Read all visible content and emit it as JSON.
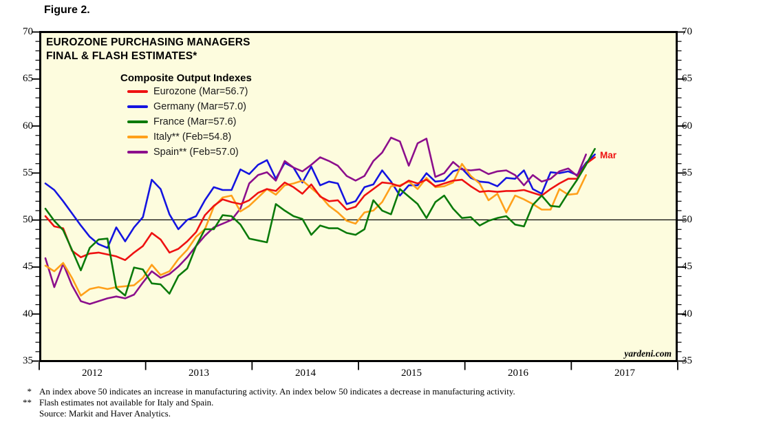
{
  "figure_label": "Figure 2.",
  "chart": {
    "title_line1": "EUROZONE PURCHASING MANAGERS",
    "title_line2": "FINAL & FLASH ESTIMATES*",
    "legend_title": "Composite Output Indexes",
    "end_annotation": "Mar",
    "end_annotation_color": "#ee1111",
    "watermark": "yardeni.com",
    "plot_background": "#fdfcde"
  },
  "axis": {
    "y_tick_labels": [
      "70",
      "65",
      "60",
      "55",
      "50",
      "45",
      "40",
      "35"
    ],
    "x_tick_labels": [
      "2012",
      "2013",
      "2014",
      "2015",
      "2016",
      "2017"
    ],
    "reference_line": 50
  },
  "chart_data": {
    "type": "line",
    "title": "EUROZONE PURCHASING MANAGERS FINAL & FLASH ESTIMATES*",
    "subtitle": "Composite Output Indexes",
    "x_start": "2012-01",
    "x_end": "2017-03",
    "frequency": "monthly",
    "ylim": [
      35,
      70
    ],
    "y_major_tick": 5,
    "y_minor_tick": 1,
    "reference_line": 50,
    "grid": false,
    "legend_position": "upper-left-inside",
    "series": [
      {
        "id": "germany",
        "name": "Germany",
        "legend_label": "Germany (Mar=57.0)",
        "color": "#1414e0",
        "values": [
          53.9,
          53.2,
          52.0,
          50.7,
          49.4,
          48.2,
          47.4,
          47.0,
          49.2,
          47.7,
          49.2,
          50.3,
          54.3,
          53.3,
          50.6,
          49.0,
          50.0,
          50.4,
          52.1,
          53.5,
          53.2,
          53.2,
          55.4,
          54.9,
          55.9,
          56.4,
          54.4,
          56.1,
          55.6,
          54.0,
          55.7,
          53.7,
          54.1,
          53.9,
          51.7,
          52.0,
          53.5,
          53.8,
          55.3,
          54.1,
          52.6,
          53.7,
          53.7,
          55.0,
          54.1,
          54.2,
          55.2,
          55.5,
          54.5,
          54.1,
          54.0,
          53.6,
          54.5,
          54.4,
          55.3,
          53.3,
          52.8,
          55.1,
          55.0,
          55.2,
          54.8,
          56.1,
          57.0
        ]
      },
      {
        "id": "spain",
        "name": "Spain",
        "legend_label": "Spain** (Feb=57.0)",
        "color": "#8c0f8c",
        "values": [
          45.9,
          42.8,
          45.3,
          43.0,
          41.3,
          41.0,
          41.3,
          41.6,
          41.8,
          41.6,
          42.0,
          43.3,
          44.5,
          43.8,
          44.2,
          45.0,
          46.0,
          47.2,
          48.3,
          49.2,
          49.6,
          50.0,
          51.2,
          53.9,
          54.8,
          55.1,
          54.2,
          56.3,
          55.6,
          55.2,
          55.9,
          56.7,
          56.3,
          55.8,
          54.7,
          54.2,
          54.7,
          56.3,
          57.2,
          58.8,
          58.4,
          55.8,
          58.2,
          58.7,
          54.6,
          55.0,
          56.2,
          55.4,
          55.3,
          55.4,
          54.9,
          55.2,
          55.3,
          54.8,
          53.7,
          54.8,
          54.1,
          54.4,
          55.2,
          55.5,
          54.7,
          57.0
        ]
      },
      {
        "id": "italy",
        "name": "Italy",
        "legend_label": "Italy** (Feb=54.8)",
        "color": "#ffa01a",
        "values": [
          45.1,
          44.5,
          45.4,
          43.8,
          41.9,
          42.6,
          42.8,
          42.6,
          42.8,
          42.9,
          43.0,
          43.8,
          45.2,
          44.1,
          44.5,
          45.8,
          46.8,
          48.2,
          49.0,
          51.4,
          52.4,
          52.6,
          50.9,
          51.5,
          52.4,
          53.3,
          52.7,
          53.7,
          53.9,
          54.2,
          53.4,
          52.6,
          51.5,
          50.8,
          49.9,
          49.6,
          50.8,
          51.0,
          51.9,
          53.6,
          53.7,
          54.1,
          53.3,
          54.5,
          53.5,
          53.6,
          54.0,
          56.0,
          54.7,
          53.9,
          52.1,
          52.8,
          50.8,
          52.6,
          52.2,
          51.7,
          51.1,
          51.1,
          53.3,
          52.7,
          52.8,
          54.8
        ]
      },
      {
        "id": "eurozone",
        "name": "Eurozone",
        "legend_label": "Eurozone (Mar=56.7)",
        "color": "#ee1111",
        "values": [
          50.4,
          49.3,
          49.1,
          46.7,
          46.0,
          46.4,
          46.5,
          46.3,
          46.1,
          45.7,
          46.5,
          47.2,
          48.6,
          47.9,
          46.5,
          46.9,
          47.7,
          48.7,
          50.5,
          51.5,
          52.2,
          51.9,
          51.7,
          52.1,
          52.9,
          53.3,
          53.1,
          54.0,
          53.5,
          52.8,
          53.8,
          52.5,
          52.0,
          52.1,
          51.1,
          51.4,
          52.6,
          53.3,
          54.0,
          53.9,
          53.6,
          54.2,
          53.9,
          54.3,
          53.6,
          53.9,
          54.2,
          54.3,
          53.6,
          53.0,
          53.1,
          53.0,
          53.1,
          53.1,
          53.2,
          52.9,
          52.6,
          53.3,
          53.9,
          54.4,
          54.4,
          56.0,
          56.7
        ]
      },
      {
        "id": "france",
        "name": "France",
        "legend_label": "France (Mar=57.6)",
        "color": "#0a7a0a",
        "values": [
          51.2,
          49.9,
          48.9,
          46.8,
          44.6,
          47.0,
          47.9,
          48.0,
          42.7,
          41.9,
          44.9,
          44.7,
          43.2,
          43.1,
          42.1,
          44.0,
          44.8,
          47.2,
          49.0,
          49.0,
          50.5,
          50.4,
          49.5,
          48.0,
          47.8,
          47.6,
          51.7,
          51.0,
          50.4,
          50.1,
          48.4,
          49.4,
          49.1,
          49.1,
          48.6,
          48.4,
          49.0,
          52.1,
          51.0,
          50.6,
          53.3,
          52.5,
          51.7,
          50.2,
          51.9,
          52.6,
          51.2,
          50.2,
          50.3,
          49.4,
          49.9,
          50.2,
          50.4,
          49.5,
          49.3,
          51.6,
          52.6,
          51.5,
          51.4,
          52.9,
          54.3,
          55.9,
          57.6
        ]
      }
    ],
    "legend_order": [
      "eurozone",
      "germany",
      "france",
      "italy",
      "spain"
    ]
  },
  "footnotes": [
    {
      "marker": "*",
      "text": "An index above 50 indicates an increase in manufacturing activity. An index below 50 indicates a decrease in manufacturing activity."
    },
    {
      "marker": "**",
      "text": "Flash estimates not available for Italy and Spain."
    },
    {
      "marker": "",
      "text": "Source: Markit and Haver Analytics."
    }
  ]
}
